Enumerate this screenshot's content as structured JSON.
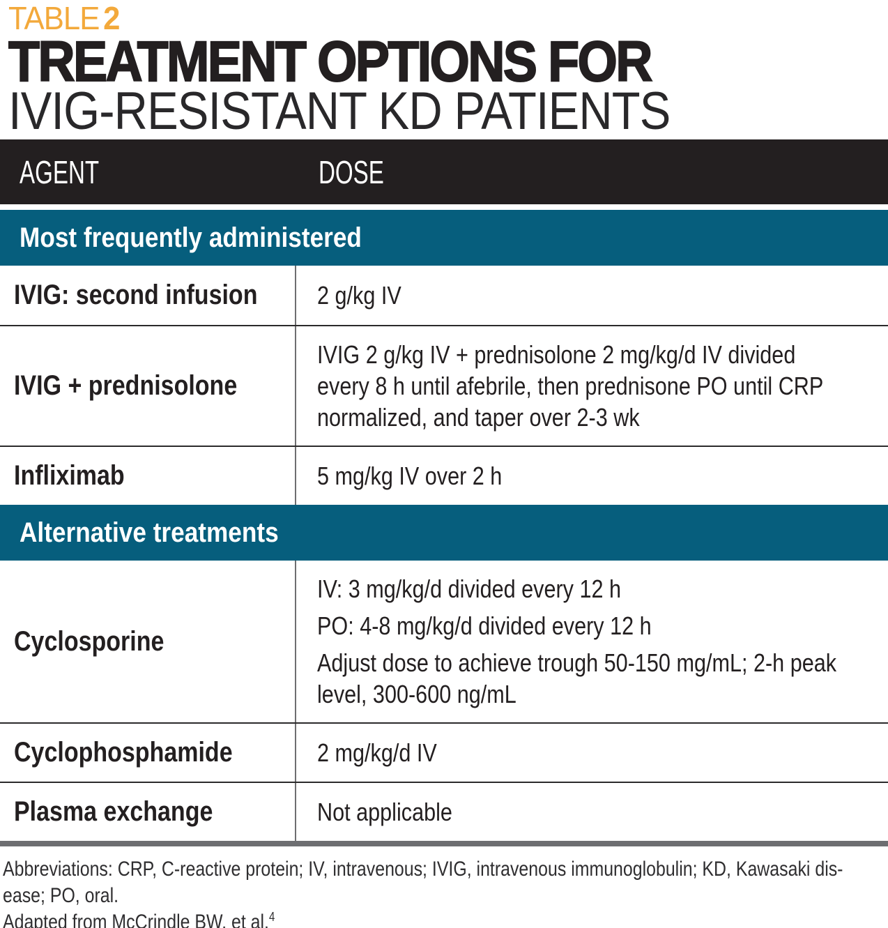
{
  "header": {
    "label_prefix": "TABLE",
    "label_number": "2",
    "title_line1": "TREATMENT OPTIONS FOR",
    "title_line2": "IVIG-RESISTANT KD PATIENTS"
  },
  "table": {
    "columns": [
      "AGENT",
      "DOSE"
    ],
    "sections": [
      {
        "header": "Most frequently administered",
        "rows": [
          {
            "agent": "IVIG: second infusion",
            "dose_paragraphs": [
              [
                "2 g/kg IV"
              ]
            ]
          },
          {
            "agent": "IVIG + prednisolone",
            "dose_paragraphs": [
              [
                "IVIG 2 g/kg IV + prednisolone 2 mg/kg/d IV divided",
                "every 8 h until afebrile, then prednisone PO until CRP",
                "normalized, and taper over 2-3 wk"
              ]
            ]
          },
          {
            "agent": "Infliximab",
            "dose_paragraphs": [
              [
                "5 mg/kg IV over 2 h"
              ]
            ]
          }
        ]
      },
      {
        "header": "Alternative treatments",
        "rows": [
          {
            "agent": "Cyclosporine",
            "dose_paragraphs": [
              [
                "IV: 3 mg/kg/d divided every 12 h"
              ],
              [
                "PO: 4-8 mg/kg/d divided every 12 h"
              ],
              [
                "Adjust dose to achieve trough 50-150 mg/mL; 2-h peak",
                "level, 300-600 ng/mL"
              ]
            ]
          },
          {
            "agent": "Cyclophosphamide",
            "dose_paragraphs": [
              [
                "2 mg/kg/d IV"
              ]
            ]
          },
          {
            "agent": "Plasma exchange",
            "dose_paragraphs": [
              [
                "Not applicable"
              ]
            ]
          }
        ]
      }
    ]
  },
  "footnotes": {
    "abbreviation_lines": [
      "Abbreviations: CRP, C-reactive protein; IV, intravenous; IVIG, intravenous immunoglobulin; KD, Kawasaki dis-",
      "ease; PO, oral."
    ],
    "source_text": "Adapted from McCrindle BW, et al.",
    "source_reference": "4"
  },
  "colors": {
    "accent_orange": "#F3A93B",
    "header_black": "#231F20",
    "section_teal": "#065E7D",
    "bottom_rule_gray": "#6D6E71"
  }
}
